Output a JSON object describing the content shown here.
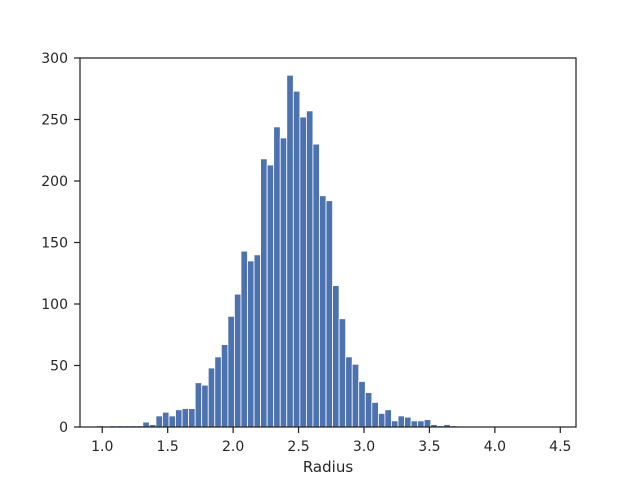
{
  "chart_data": {
    "type": "bar",
    "subtype": "histogram",
    "title": "",
    "xlabel": "Radius",
    "ylabel": "",
    "xlim": [
      0.83,
      4.62
    ],
    "ylim": [
      0,
      300
    ],
    "xticks": [
      1.0,
      1.5,
      2.0,
      2.5,
      3.0,
      3.5,
      4.0,
      4.5
    ],
    "xtick_labels": [
      "1.0",
      "1.5",
      "2.0",
      "2.5",
      "3.0",
      "3.5",
      "4.0",
      "4.5"
    ],
    "yticks": [
      0,
      50,
      100,
      150,
      200,
      250,
      300
    ],
    "ytick_labels": [
      "0",
      "50",
      "100",
      "150",
      "200",
      "250",
      "300"
    ],
    "grid": false,
    "legend": "none",
    "bar_color": "#4c72b0",
    "bin_edges": [
      0.96,
      1.01,
      1.06,
      1.11,
      1.16,
      1.21,
      1.26,
      1.31,
      1.36,
      1.41,
      1.46,
      1.51,
      1.56,
      1.61,
      1.66,
      1.71,
      1.76,
      1.81,
      1.86,
      1.91,
      1.96,
      2.01,
      2.06,
      2.11,
      2.16,
      2.21,
      2.26,
      2.31,
      2.36,
      2.41,
      2.46,
      2.51,
      2.56,
      2.61,
      2.66,
      2.71,
      2.76,
      2.81,
      2.86,
      2.91,
      2.96,
      3.01,
      3.06,
      3.11,
      3.16,
      3.21,
      3.26,
      3.31,
      3.36,
      3.41,
      3.46,
      3.51,
      3.56,
      3.61,
      3.66,
      3.71,
      3.76,
      3.81,
      3.86,
      3.91,
      3.96,
      4.01,
      4.06,
      4.11,
      4.16,
      4.21,
      4.26,
      4.31,
      4.36,
      4.41,
      4.46,
      4.51
    ],
    "values": [
      1,
      0,
      1,
      1,
      1,
      1,
      1,
      4,
      2,
      9,
      12,
      9,
      14,
      15,
      15,
      36,
      34,
      48,
      57,
      67,
      90,
      108,
      143,
      135,
      140,
      218,
      213,
      244,
      235,
      286,
      273,
      252,
      257,
      230,
      188,
      184,
      115,
      88,
      57,
      51,
      37,
      28,
      20,
      11,
      14,
      5,
      9,
      8,
      5,
      5,
      6,
      2,
      1,
      2,
      1,
      0,
      0,
      0,
      0,
      0,
      0,
      0,
      0,
      0,
      0,
      0,
      0,
      0,
      0,
      0,
      0
    ]
  }
}
